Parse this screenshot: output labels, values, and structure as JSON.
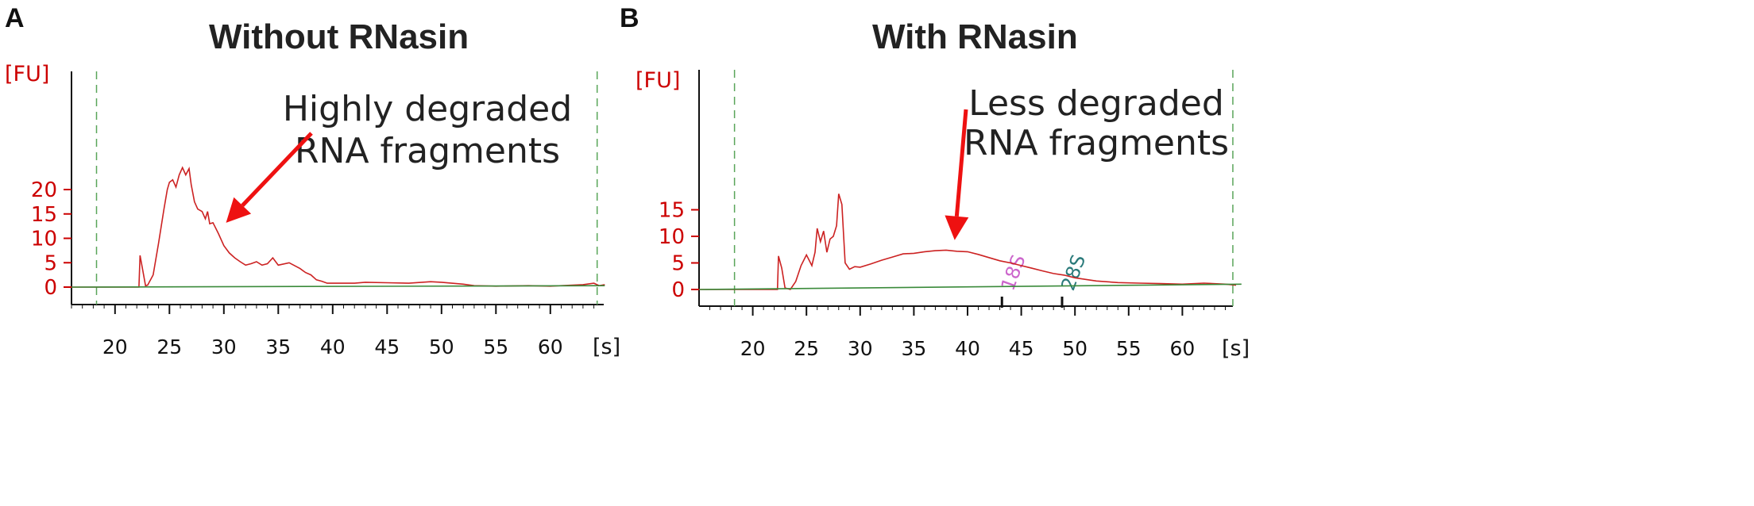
{
  "chart_data": [
    {
      "panel_label": "A",
      "title": "Without RNasin",
      "type": "line",
      "y_unit": "[FU]",
      "x_unit": "[s]",
      "xlim": [
        16,
        65
      ],
      "ylim": [
        0,
        25
      ],
      "x_ticks": [
        20,
        25,
        30,
        35,
        40,
        45,
        50,
        55,
        60
      ],
      "y_ticks": [
        0,
        5,
        10,
        15,
        20
      ],
      "grid": false,
      "window_markers_x": [
        18.3,
        64.3
      ],
      "annotation": {
        "lines": [
          "Highly degraded",
          "RNA fragments"
        ],
        "arrow_target": [
          30.2,
          13.2
        ]
      },
      "ladder_markers": [],
      "series": [
        {
          "color": "#cc2222",
          "x": [
            16,
            22.2,
            22.3,
            22.5,
            22.8,
            23.0,
            23.5,
            24.0,
            24.5,
            24.8,
            25.0,
            25.3,
            25.6,
            25.9,
            26.2,
            26.5,
            26.8,
            27.0,
            27.3,
            27.6,
            28.0,
            28.3,
            28.5,
            28.7,
            29.0,
            29.5,
            30.0,
            30.5,
            31.0,
            31.5,
            32.0,
            32.5,
            33.0,
            33.5,
            34.0,
            34.5,
            35.0,
            36.0,
            37.0,
            37.5,
            38.0,
            38.5,
            39.0,
            39.5,
            40.0,
            42.0,
            43.0,
            45.0,
            47.0,
            49.0,
            50.0,
            52.0,
            53.0,
            55.0,
            58.0,
            60.0,
            62.0,
            63.0,
            64.0,
            64.5,
            65.0
          ],
          "y": [
            0,
            0,
            6.5,
            4,
            0.3,
            0.4,
            2.5,
            9,
            16,
            20,
            21.5,
            22,
            20.5,
            23,
            24.5,
            23,
            24.3,
            21,
            17.5,
            16,
            15.5,
            14,
            15.5,
            13,
            13.2,
            11,
            8.5,
            7,
            6,
            5.2,
            4.5,
            4.8,
            5.2,
            4.5,
            4.8,
            6,
            4.5,
            5,
            3.8,
            3,
            2.5,
            1.5,
            1.2,
            0.8,
            0.8,
            0.8,
            1.0,
            0.9,
            0.8,
            1.1,
            1.0,
            0.6,
            0.3,
            0.2,
            0.3,
            0.2,
            0.4,
            0.5,
            0.8,
            0.3,
            0.5
          ]
        },
        {
          "color": "#3a8a3a",
          "x": [
            16,
            65
          ],
          "y": [
            0,
            0.3
          ]
        }
      ]
    },
    {
      "panel_label": "B",
      "title": "With RNasin",
      "type": "line",
      "y_unit": "[FU]",
      "x_unit": "[s]",
      "xlim": [
        15,
        65.5
      ],
      "ylim": [
        0,
        20
      ],
      "x_ticks": [
        20,
        25,
        30,
        35,
        40,
        45,
        50,
        55,
        60
      ],
      "y_ticks": [
        0,
        5,
        10,
        15
      ],
      "grid": false,
      "window_markers_x": [
        18.3,
        64.7
      ],
      "annotation": {
        "lines": [
          "Less degraded",
          "RNA fragments"
        ],
        "arrow_target": [
          38.8,
          9.3
        ]
      },
      "ladder_markers": [
        {
          "label": "18S",
          "x": 43.2,
          "color": "#cc66cc"
        },
        {
          "label": "28S",
          "x": 48.8,
          "color": "#2a7a7a"
        }
      ],
      "series": [
        {
          "color": "#cc2222",
          "x": [
            15,
            22.3,
            22.4,
            22.7,
            23.0,
            23.5,
            24.0,
            24.5,
            25.0,
            25.5,
            25.8,
            26.0,
            26.3,
            26.6,
            26.9,
            27.2,
            27.5,
            27.8,
            28.0,
            28.3,
            28.6,
            29.0,
            29.5,
            30.0,
            31.0,
            32.0,
            33.0,
            34.0,
            35.0,
            36.0,
            37.0,
            38.0,
            39.0,
            40.0,
            41.0,
            42.0,
            43.0,
            44.0,
            45.0,
            46.0,
            47.0,
            48.0,
            49.0,
            50.0,
            51.0,
            52.0,
            54.0,
            56.0,
            58.0,
            60.0,
            62.0,
            64.0,
            65.0
          ],
          "y": [
            0,
            0,
            6.3,
            4,
            0.3,
            0,
            1.5,
            4.5,
            6.5,
            4.5,
            7,
            11.5,
            9,
            11,
            7,
            9.5,
            10,
            12,
            18,
            16,
            5,
            3.8,
            4.3,
            4.2,
            4.8,
            5.5,
            6.1,
            6.7,
            6.8,
            7.1,
            7.3,
            7.4,
            7.2,
            7.1,
            6.6,
            6.0,
            5.4,
            5.0,
            4.5,
            4.0,
            3.5,
            3.0,
            2.7,
            2.2,
            1.9,
            1.6,
            1.3,
            1.2,
            1.1,
            1.0,
            1.2,
            1.0,
            0.8
          ]
        },
        {
          "color": "#3a8a3a",
          "x": [
            15,
            65.5
          ],
          "y": [
            0,
            1.0
          ]
        }
      ]
    }
  ]
}
